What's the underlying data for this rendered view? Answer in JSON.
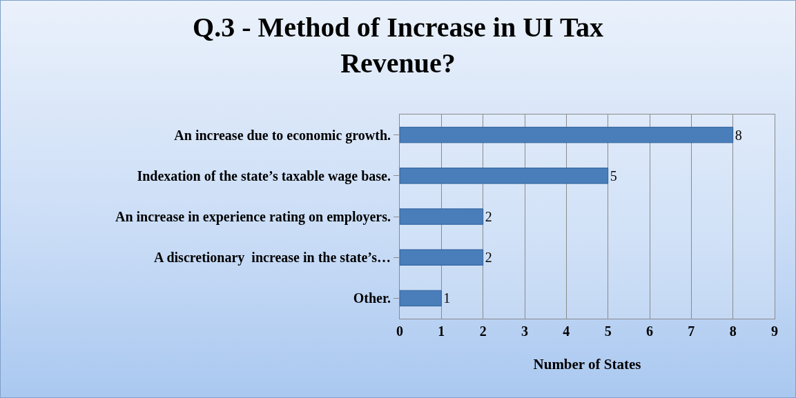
{
  "chart_data": {
    "type": "bar",
    "orientation": "horizontal",
    "title": "Q.3 - Method of Increase in UI Tax\nRevenue?",
    "xlabel": "Number of States",
    "categories": [
      "An increase due to economic growth.",
      "Indexation of the state’s taxable wage base.",
      "An increase in experience rating on employers.",
      "A discretionary  increase in the state’s…",
      "Other."
    ],
    "values": [
      8,
      5,
      2,
      2,
      1
    ],
    "color": "#4a7ebb",
    "xlim": [
      0,
      9
    ],
    "xticks": [
      0,
      1,
      2,
      3,
      4,
      5,
      6,
      7,
      8,
      9
    ],
    "grid": "x",
    "data_labels": true,
    "legend": false
  }
}
